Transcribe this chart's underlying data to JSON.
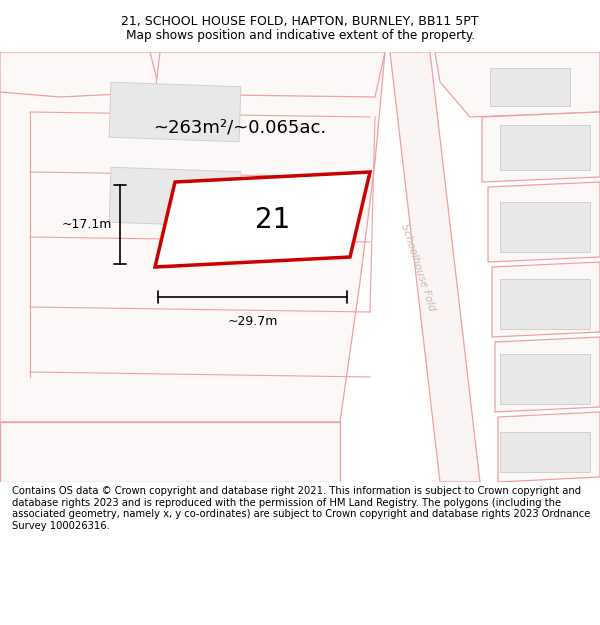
{
  "title_line1": "21, SCHOOL HOUSE FOLD, HAPTON, BURNLEY, BB11 5PT",
  "title_line2": "Map shows position and indicative extent of the property.",
  "footer_text": "Contains OS data © Crown copyright and database right 2021. This information is subject to Crown copyright and database rights 2023 and is reproduced with the permission of HM Land Registry. The polygons (including the associated geometry, namely x, y co-ordinates) are subject to Crown copyright and database rights 2023 Ordnance Survey 100026316.",
  "area_label": "~263m²/~0.065ac.",
  "number_label": "21",
  "dim_width": "~29.7m",
  "dim_height": "~17.1m",
  "road_label": "Schoolhouse Fold",
  "bg_color": "#ffffff",
  "map_bg": "#ffffff",
  "plot_fill": "#ffffff",
  "plot_stroke": "#cc0000",
  "road_line_color": "#f0a0a0",
  "parcel_line_color": "#f0a0a0",
  "building_fill": "#e8e8e8",
  "building_stroke": "#d0d0d0",
  "road_label_color": "#c8b8b8",
  "title_fontsize": 9.0,
  "footer_fontsize": 7.2,
  "area_fontsize": 13.0,
  "num_fontsize": 20.0,
  "dim_fontsize": 9.0,
  "road_label_fontsize": 7.5
}
